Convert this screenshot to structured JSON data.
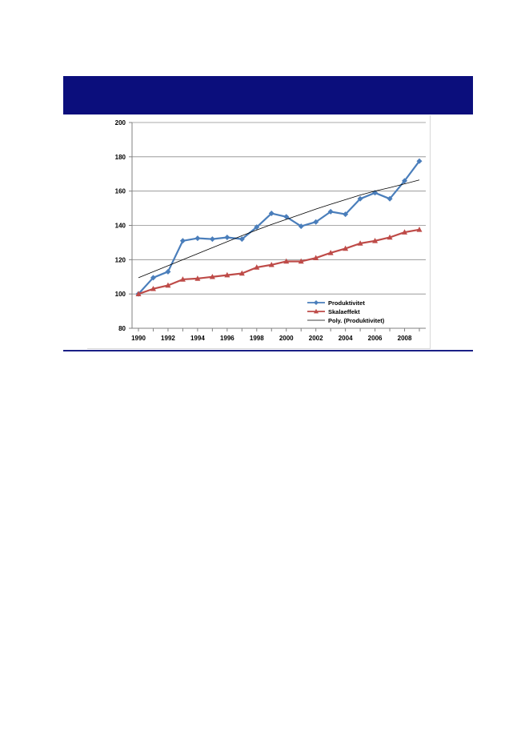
{
  "chart_data": {
    "type": "line",
    "title": "",
    "xlabel": "",
    "ylabel": "",
    "ylim": [
      80,
      200
    ],
    "yticks": [
      80,
      100,
      120,
      140,
      160,
      180,
      200
    ],
    "xlim": [
      1990,
      2009
    ],
    "xticks": [
      1990,
      1992,
      1994,
      1996,
      1998,
      2000,
      2002,
      2004,
      2006,
      2008
    ],
    "grid": "horizontal",
    "legend": "bottom-right",
    "x": [
      1990,
      1991,
      1992,
      1993,
      1994,
      1995,
      1996,
      1997,
      1998,
      1999,
      2000,
      2001,
      2002,
      2003,
      2004,
      2005,
      2006,
      2007,
      2008,
      2009
    ],
    "series": [
      {
        "name": "Produktivitet",
        "color": "#4a7ebb",
        "marker": "diamond",
        "values": [
          100,
          109.5,
          113,
          131,
          132.5,
          132,
          133,
          132,
          139,
          147,
          145,
          139.5,
          142,
          148,
          146.5,
          155.5,
          159,
          155.5,
          166,
          177.5
        ]
      },
      {
        "name": "Skalaeffekt",
        "color": "#be4b48",
        "marker": "triangle",
        "values": [
          100,
          103,
          105,
          108.5,
          109,
          110,
          111,
          112,
          115.5,
          117,
          119,
          119,
          121,
          124,
          126.5,
          129.5,
          131,
          133,
          136,
          137.5
        ]
      },
      {
        "name": "Poly. (Produktivitet)",
        "color": "#000000",
        "marker": "none",
        "values": [
          109.5,
          113,
          116.5,
          120,
          123.5,
          127,
          130.5,
          134,
          137.3,
          140.5,
          143.5,
          146.5,
          149.5,
          152.3,
          155,
          157.7,
          160,
          162,
          164.2,
          166.5
        ]
      }
    ]
  }
}
